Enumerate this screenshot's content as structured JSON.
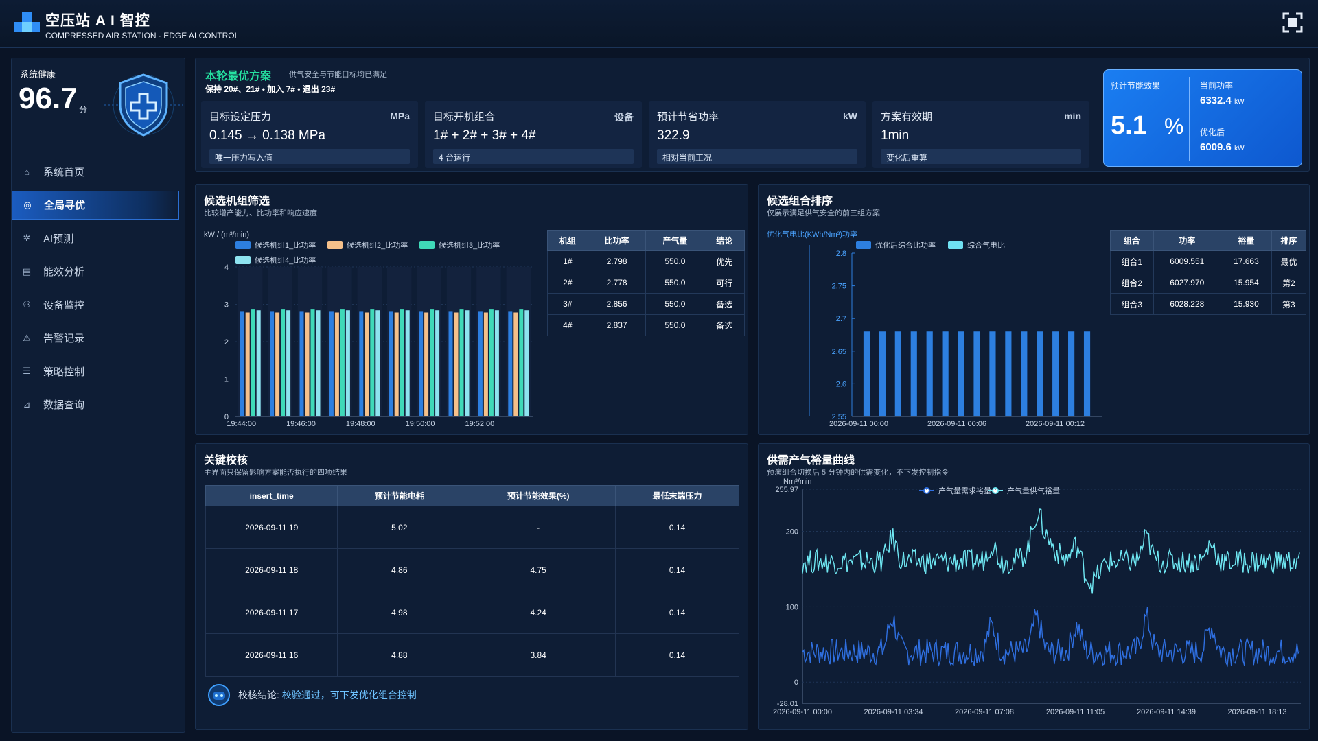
{
  "header": {
    "title": "空压站 A I 智控",
    "subtitle": "COMPRESSED AIR STATION · EDGE AI CONTROL"
  },
  "sidebar": {
    "health_label": "系统健康",
    "health_value": "96.7",
    "health_unit": "分",
    "nav": [
      {
        "label": "系统首页",
        "icon": "home-icon",
        "glyph": "⌂",
        "active": false
      },
      {
        "label": "全局寻优",
        "icon": "target-icon",
        "glyph": "◎",
        "active": true
      },
      {
        "label": "AI预测",
        "icon": "brain-icon",
        "glyph": "✲",
        "active": false
      },
      {
        "label": "能效分析",
        "icon": "report-icon",
        "glyph": "▤",
        "active": false
      },
      {
        "label": "设备监控",
        "icon": "device-icon",
        "glyph": "⚇",
        "active": false
      },
      {
        "label": "告警记录",
        "icon": "bell-icon",
        "glyph": "⚠",
        "active": false
      },
      {
        "label": "策略控制",
        "icon": "sliders-icon",
        "glyph": "☰",
        "active": false
      },
      {
        "label": "数据查询",
        "icon": "chart-icon",
        "glyph": "⊿",
        "active": false
      }
    ]
  },
  "scheme": {
    "title": "本轮最优方案",
    "subtitle": "供气安全与节能目标均已满足",
    "keep": "保持 20#、21# • 加入 7# • 退出 23#",
    "metrics": [
      {
        "label": "目标设定压力",
        "unit": "MPa",
        "value": "0.145 → 0.138 MPa",
        "note": "唯一压力写入值"
      },
      {
        "label": "目标开机组合",
        "unit": "设备",
        "value": "1# + 2# + 3# + 4#",
        "note": "4 台运行"
      },
      {
        "label": "预计节省功率",
        "unit": "kW",
        "value": "322.9",
        "note": "相对当前工况"
      },
      {
        "label": "方案有效期",
        "unit": "min",
        "value": "1min",
        "note": "变化后重算"
      }
    ],
    "effect": {
      "label": "预计节能效果",
      "value": "5.1",
      "pct": "%",
      "current_label": "当前功率",
      "current_value": "6332.4",
      "current_unit": "kW",
      "opt_label": "优化后",
      "opt_value": "6009.6",
      "opt_unit": "kW"
    }
  },
  "candidates": {
    "title": "候选机组筛选",
    "subtitle": "比较增产能力、比功率和响应速度",
    "table": {
      "headers": [
        "机组",
        "比功率",
        "产气量",
        "结论"
      ],
      "rows": [
        [
          "1#",
          "2.798",
          "550.0",
          "优先"
        ],
        [
          "2#",
          "2.778",
          "550.0",
          "可行"
        ],
        [
          "3#",
          "2.856",
          "550.0",
          "备选"
        ],
        [
          "4#",
          "2.837",
          "550.0",
          "备选"
        ]
      ]
    }
  },
  "ranking": {
    "title": "候选组合排序",
    "subtitle": "仅展示满足供气安全的前三组方案",
    "table": {
      "headers": [
        "组合",
        "功率",
        "裕量",
        "排序"
      ],
      "rows": [
        [
          "组合1",
          "6009.551",
          "17.663",
          "最优"
        ],
        [
          "组合2",
          "6027.970",
          "15.954",
          "第2"
        ],
        [
          "组合3",
          "6028.228",
          "15.930",
          "第3"
        ]
      ]
    }
  },
  "check": {
    "title": "关键校核",
    "subtitle": "主界面只保留影响方案能否执行的四项结果",
    "headers": [
      "insert_time",
      "预计节能电耗",
      "预计节能效果(%)",
      "最低末端压力"
    ],
    "rows": [
      [
        "2026-09-11 19",
        "5.02",
        "-",
        "0.14"
      ],
      [
        "2026-09-11 18",
        "4.86",
        "4.75",
        "0.14"
      ],
      [
        "2026-09-11 17",
        "4.98",
        "4.24",
        "0.14"
      ],
      [
        "2026-09-11 16",
        "4.88",
        "3.84",
        "0.14"
      ]
    ],
    "conclusion_label": "校核结论:",
    "conclusion_value": "校验通过，可下发优化组合控制"
  },
  "supply": {
    "title": "供需产气裕量曲线",
    "subtitle": "预演组合切换后 5 分钟内的供需变化，不下发控制指令"
  },
  "chart_data": [
    {
      "type": "bar",
      "ylabel": "kW / (m³/min)",
      "ylim": [
        0,
        4
      ],
      "yticks": [
        "0",
        "1",
        "2",
        "3",
        "4"
      ],
      "xticks": [
        "19:44:00",
        "19:46:00",
        "19:48:00",
        "19:50:00",
        "19:52:00"
      ],
      "x": [
        "19:44:00",
        "19:45:00",
        "19:46:00",
        "19:47:00",
        "19:48:00",
        "19:49:00",
        "19:50:00",
        "19:51:00",
        "19:52:00",
        "19:53:00"
      ],
      "legend_placement": "top",
      "series": [
        {
          "name": "候选机组1_比功率",
          "color": "#2d7fe0",
          "values": [
            2.8,
            2.8,
            2.8,
            2.8,
            2.8,
            2.8,
            2.8,
            2.8,
            2.8,
            2.8
          ]
        },
        {
          "name": "候选机组2_比功率",
          "color": "#f5c08a",
          "values": [
            2.78,
            2.78,
            2.78,
            2.78,
            2.78,
            2.78,
            2.78,
            2.78,
            2.78,
            2.78
          ]
        },
        {
          "name": "候选机组3_比功率",
          "color": "#3fd9b8",
          "values": [
            2.86,
            2.86,
            2.86,
            2.86,
            2.86,
            2.86,
            2.86,
            2.86,
            2.86,
            2.86
          ]
        },
        {
          "name": "候选机组4_比功率",
          "color": "#8ee3ef",
          "values": [
            2.84,
            2.84,
            2.84,
            2.84,
            2.84,
            2.84,
            2.84,
            2.84,
            2.84,
            2.84
          ]
        }
      ]
    },
    {
      "type": "bar",
      "ylabel": "优化气电比(KWh/Nm³)功率",
      "ylim": [
        2.55,
        2.8
      ],
      "yticks": [
        "2.55",
        "2.6",
        "2.65",
        "2.7",
        "2.75",
        "2.8"
      ],
      "xticks": [
        "2026-09-11 00:00",
        "2026-09-11 00:06",
        "2026-09-11 00:12"
      ],
      "legend_placement": "top",
      "series": [
        {
          "name": "优化后综合比功率",
          "color": "#2d7fe0",
          "values": [
            2.68,
            2.68,
            2.68,
            2.68,
            2.68,
            2.68,
            2.68,
            2.68,
            2.68,
            2.68,
            2.68,
            2.68,
            2.68,
            2.68,
            2.68
          ]
        },
        {
          "name": "综合气电比",
          "color": "#6fe0f2",
          "values": []
        }
      ]
    },
    {
      "type": "line",
      "ylabel": "Nm³/min",
      "ylim": [
        -28.01,
        255.97
      ],
      "yticks": [
        "-28.01",
        "0",
        "100",
        "200",
        "255.97"
      ],
      "xticks": [
        "2026-09-11 00:00",
        "2026-09-11 03:34",
        "2026-09-11 07:08",
        "2026-09-11 11:05",
        "2026-09-11 14:39",
        "2026-09-11 18:13"
      ],
      "legend_placement": "top",
      "series": [
        {
          "name": "产气量需求裕量",
          "color": "#2f6fe0",
          "base": 40,
          "spread": 18
        },
        {
          "name": "产气量供气裕量",
          "color": "#6fe7f2",
          "base": 160,
          "spread": 16
        }
      ]
    }
  ]
}
